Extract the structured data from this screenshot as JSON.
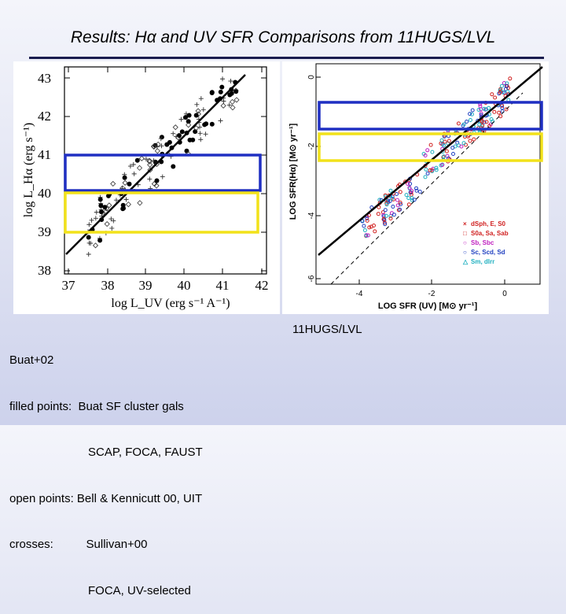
{
  "slide": {
    "title": "Results: Hα and UV SFR Comparisons from 11HUGS/LVL"
  },
  "left_figure": {
    "ylabel": "log L_Hα (erg s⁻¹)",
    "xlabel": "log L_UV (erg s⁻¹ A⁻¹)",
    "y_ticks": [
      "43",
      "42",
      "41",
      "40",
      "39",
      "38"
    ],
    "x_ticks": [
      "37",
      "38",
      "39",
      "40",
      "41",
      "42"
    ],
    "colors": {
      "blue_box": "#1f2fc2",
      "yellow_box": "#f2e21a",
      "line": "#000000"
    }
  },
  "right_figure": {
    "ylabel": "LOG SFR(Hα) [M⊙ yr⁻¹]",
    "xlabel": "LOG SFR (UV) [M⊙ yr⁻¹]",
    "y_ticks": [
      "0",
      "-2",
      "-4",
      "-6"
    ],
    "x_ticks": [
      "-4",
      "-2",
      "0"
    ],
    "legend": [
      {
        "symbol": "×",
        "label": "dSph, E, S0",
        "color": "#d02020"
      },
      {
        "symbol": "□",
        "label": "S0a, Sa, Sab",
        "color": "#d02020"
      },
      {
        "symbol": "○",
        "label": "Sb, Sbc",
        "color": "#c020c0"
      },
      {
        "symbol": "○",
        "label": "Sc, Scd, Sd",
        "color": "#2040c0"
      },
      {
        "symbol": "△",
        "label": "Sm, dIrr",
        "color": "#20b0c0"
      }
    ]
  },
  "left_caption": {
    "lines": [
      "Buat+02",
      "filled points:  Buat SF cluster gals",
      "                        SCAP, FOCA, FAUST",
      "open points: Bell & Kennicutt 00, UIT",
      "crosses:          Sullivan+00",
      "                        FOCA, UV-selected"
    ]
  },
  "right_caption": {
    "text": "11HUGS/LVL"
  }
}
